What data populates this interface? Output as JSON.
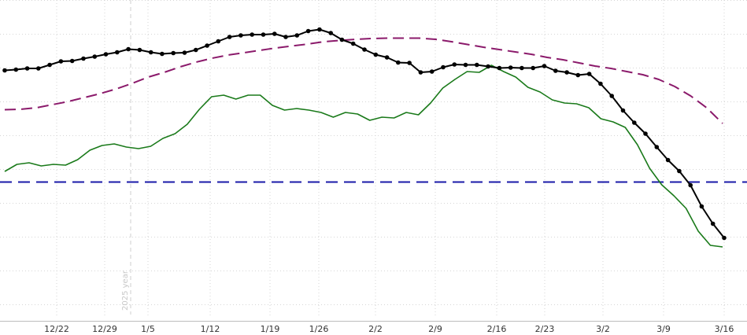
{
  "chart_data": {
    "type": "line",
    "title": "",
    "xlabel": "",
    "ylabel": "",
    "x_tick_labels": [
      "12/22",
      "12/29",
      "1/5",
      "1/12",
      "1/19",
      "1/26",
      "2/2",
      "2/9",
      "2/16",
      "2/23",
      "3/2",
      "3/9",
      "3/16"
    ],
    "year_marker": {
      "label": "2025 year"
    },
    "grid": true,
    "y_tick_labels_shown": false,
    "series": [
      {
        "key": "black",
        "style": "solid-markers",
        "color": "#000000",
        "values": [
          89.5,
          88.5,
          87.0,
          87.0,
          82.5,
          78.0,
          77.5,
          74.5,
          72.0,
          69.0,
          66.5,
          62.5,
          63.5,
          66.5,
          68.5,
          67.5,
          67.0,
          63.5,
          58.0,
          52.5,
          47.0,
          45.0,
          44.0,
          44.0,
          43.0,
          47.0,
          45.0,
          39.5,
          37.5,
          42.0,
          50.5,
          55.5,
          63.0,
          69.5,
          73.0,
          79.5,
          80.0,
          92.0,
          91.0,
          85.5,
          82.0,
          82.5,
          82.5,
          84.5,
          86.5,
          86.0,
          86.5,
          86.5,
          84.0,
          90.0,
          92.0,
          95.5,
          94.0,
          106.5,
          122.0,
          140.5,
          156.0,
          170.0,
          187.0,
          203.5,
          217.5,
          235.5,
          262.5,
          284.5,
          302.5
        ]
      },
      {
        "key": "green",
        "style": "solid",
        "color": "#1a7a1a",
        "values": [
          218.0,
          209.0,
          207.0,
          211.0,
          209.0,
          210.0,
          203.0,
          191.0,
          185.0,
          183.0,
          187.0,
          189.0,
          186.0,
          176.0,
          170.0,
          158.0,
          139.0,
          123.0,
          121.0,
          126.0,
          121.0,
          121.0,
          134.0,
          140.0,
          138.0,
          140.0,
          143.0,
          149.0,
          143.0,
          145.0,
          153.0,
          149.0,
          150.0,
          143.0,
          146.0,
          131.0,
          112.0,
          101.0,
          91.0,
          92.0,
          83.0,
          91.0,
          98.0,
          111.0,
          117.0,
          127.0,
          131.0,
          132.0,
          137.0,
          151.0,
          155.0,
          162.0,
          184.0,
          214.0,
          235.0,
          249.0,
          265.0,
          294.0,
          312.0,
          314.0
        ]
      },
      {
        "key": "purple",
        "style": "dashed",
        "color": "#8b1a6b",
        "values": [
          139.5,
          139.0,
          137.0,
          133.0,
          129.0,
          124.0,
          119.0,
          113.0,
          106.0,
          98.0,
          92.0,
          85.0,
          79.0,
          74.0,
          70.0,
          67.0,
          64.0,
          61.0,
          58.5,
          56.0,
          53.0,
          51.5,
          50.0,
          49.0,
          48.5,
          48.5,
          48.5,
          50.0,
          53.0,
          56.5,
          60.0,
          63.0,
          66.0,
          69.0,
          73.0,
          76.0,
          80.0,
          84.0,
          87.0,
          91.0,
          95.0,
          101.0,
          110.0,
          122.0,
          137.0,
          157.0
        ]
      },
      {
        "key": "blue",
        "style": "dashed",
        "color": "#1a1aa8",
        "values": [
          231.5,
          231.5
        ]
      }
    ]
  }
}
